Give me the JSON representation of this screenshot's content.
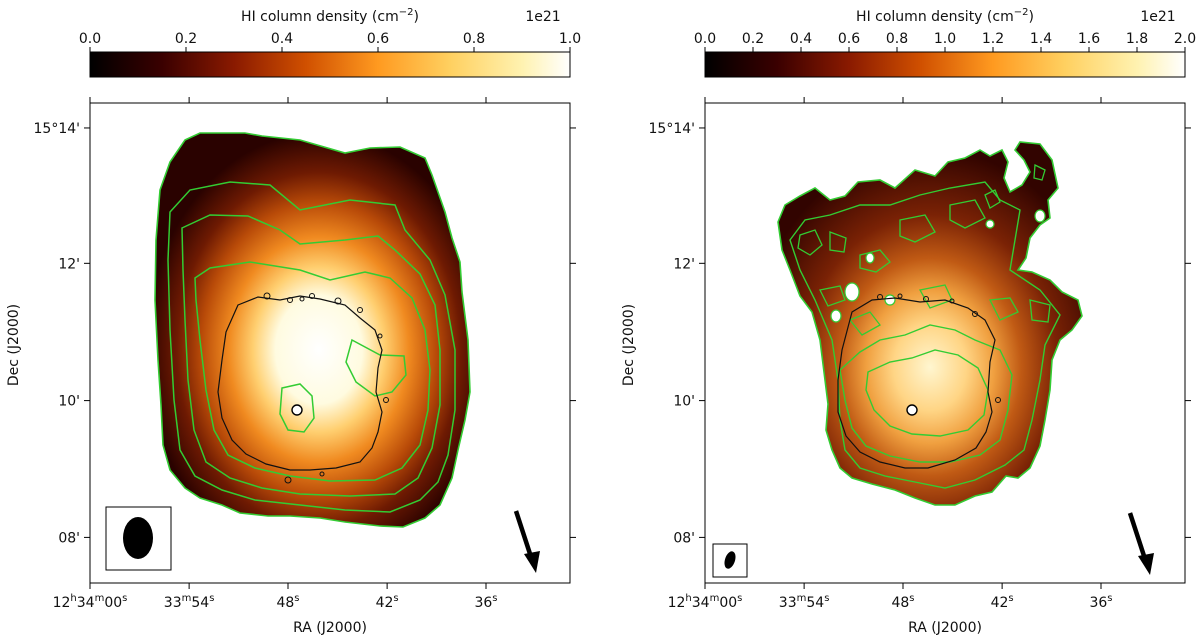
{
  "chart_data": [
    {
      "type": "heatmap",
      "colormap": "afmhot",
      "colorbar": {
        "label": "HI column density (cm$^{-2}$)",
        "label_text": "HI column density (cm",
        "label_sup": "−2",
        "label_close": ")",
        "range": [
          0.0,
          1.0
        ],
        "multiplier": "1e21",
        "ticks": [
          "0.0",
          "0.2",
          "0.4",
          "0.6",
          "0.8",
          "1.0"
        ],
        "tick_values": [
          0.0,
          0.2,
          0.4,
          0.6,
          0.8,
          1.0
        ]
      },
      "xlabel": "RA (J2000)",
      "ylabel": "Dec (J2000)",
      "x_ticks": [
        {
          "main": "12",
          "sup1": "h",
          "mid": "34",
          "sup2": "m",
          "end": "00",
          "sup3": "s"
        },
        {
          "main": "33",
          "sup1": "m",
          "mid": "54",
          "sup2": "s",
          "end": "",
          "sup3": ""
        },
        {
          "main": "48",
          "sup1": "s",
          "mid": "",
          "sup2": "",
          "end": "",
          "sup3": ""
        },
        {
          "main": "42",
          "sup1": "s",
          "mid": "",
          "sup2": "",
          "end": "",
          "sup3": ""
        },
        {
          "main": "36",
          "sup1": "s",
          "mid": "",
          "sup2": "",
          "end": "",
          "sup3": ""
        }
      ],
      "y_ticks": [
        "15°14'",
        "12'",
        "10'",
        "08'"
      ],
      "contour_color_outer": "#33cc33",
      "contour_color_optical": "#111111",
      "beam": "ellipse",
      "arrow": "direction-arrow"
    },
    {
      "type": "heatmap",
      "colormap": "afmhot",
      "colorbar": {
        "label": "HI column density (cm$^{-2}$)",
        "label_text": "HI column density (cm",
        "label_sup": "−2",
        "label_close": ")",
        "range": [
          0.0,
          2.0
        ],
        "multiplier": "1e21",
        "ticks": [
          "0.0",
          "0.2",
          "0.4",
          "0.6",
          "0.8",
          "1.0",
          "1.2",
          "1.4",
          "1.6",
          "1.8",
          "2.0"
        ],
        "tick_values": [
          0.0,
          0.2,
          0.4,
          0.6,
          0.8,
          1.0,
          1.2,
          1.4,
          1.6,
          1.8,
          2.0
        ]
      },
      "xlabel": "RA (J2000)",
      "ylabel": "Dec (J2000)",
      "x_ticks": [
        {
          "main": "12",
          "sup1": "h",
          "mid": "34",
          "sup2": "m",
          "end": "00",
          "sup3": "s"
        },
        {
          "main": "33",
          "sup1": "m",
          "mid": "54",
          "sup2": "s",
          "end": "",
          "sup3": ""
        },
        {
          "main": "48",
          "sup1": "s",
          "mid": "",
          "sup2": "",
          "end": "",
          "sup3": ""
        },
        {
          "main": "42",
          "sup1": "s",
          "mid": "",
          "sup2": "",
          "end": "",
          "sup3": ""
        },
        {
          "main": "36",
          "sup1": "s",
          "mid": "",
          "sup2": "",
          "end": "",
          "sup3": ""
        }
      ],
      "y_ticks": [
        "15°14'",
        "12'",
        "10'",
        "08'"
      ],
      "contour_color_outer": "#33cc33",
      "contour_color_optical": "#111111",
      "beam": "ellipse",
      "arrow": "direction-arrow"
    }
  ]
}
